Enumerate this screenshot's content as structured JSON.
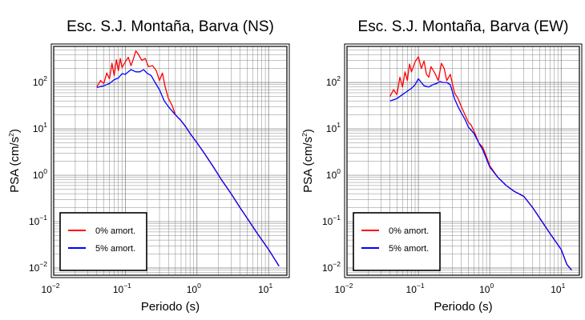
{
  "chart_data": [
    {
      "type": "line",
      "title": "Esc. S.J. Montaña, Barva (NS)",
      "xlabel": "Periodo (s)",
      "ylabel": "PSA (cm/s",
      "ylabel_sup": "2",
      "ylabel_end": ")",
      "xscale": "log",
      "yscale": "log",
      "xlim": [
        0.01,
        18
      ],
      "ylim": [
        0.007,
        600
      ],
      "x_ticks": [
        {
          "base": "10",
          "exp": "−2"
        },
        {
          "base": "10",
          "exp": "−1"
        },
        {
          "base": "10",
          "exp": "0"
        },
        {
          "base": "10",
          "exp": "1"
        }
      ],
      "y_ticks": [
        {
          "base": "10",
          "exp": "−2"
        },
        {
          "base": "10",
          "exp": "−1"
        },
        {
          "base": "10",
          "exp": "0"
        },
        {
          "base": "10",
          "exp": "1"
        },
        {
          "base": "10",
          "exp": "2"
        }
      ],
      "grid": true,
      "legend_position": "bottom-left",
      "series": [
        {
          "name": "0% amort.",
          "color": "#ff0000",
          "x": [
            0.04,
            0.045,
            0.05,
            0.055,
            0.06,
            0.065,
            0.07,
            0.075,
            0.08,
            0.085,
            0.09,
            0.1,
            0.11,
            0.12,
            0.13,
            0.14,
            0.15,
            0.17,
            0.19,
            0.21,
            0.24,
            0.27,
            0.3,
            0.33,
            0.36,
            0.4,
            0.45,
            0.5,
            0.6,
            0.7,
            0.8,
            1,
            1.3,
            1.7,
            2.2,
            3,
            4,
            5,
            7,
            10,
            12,
            14
          ],
          "y": [
            80,
            110,
            95,
            160,
            120,
            260,
            140,
            310,
            180,
            330,
            210,
            280,
            350,
            230,
            330,
            480,
            420,
            300,
            330,
            220,
            230,
            180,
            110,
            160,
            80,
            45,
            32,
            20,
            15,
            11,
            8,
            5,
            2.8,
            1.5,
            0.8,
            0.4,
            0.2,
            0.12,
            0.055,
            0.025,
            0.016,
            0.011
          ]
        },
        {
          "name": "5% amort.",
          "color": "#0000ff",
          "x": [
            0.04,
            0.05,
            0.06,
            0.07,
            0.08,
            0.09,
            0.1,
            0.12,
            0.14,
            0.16,
            0.18,
            0.2,
            0.23,
            0.26,
            0.3,
            0.35,
            0.4,
            0.5,
            0.6,
            0.7,
            0.8,
            1,
            1.3,
            1.7,
            2.2,
            3,
            4,
            5,
            7,
            10,
            12,
            14
          ],
          "y": [
            78,
            85,
            95,
            115,
            125,
            155,
            150,
            190,
            170,
            170,
            190,
            160,
            140,
            100,
            70,
            40,
            30,
            20,
            15,
            11,
            8,
            5,
            2.8,
            1.5,
            0.8,
            0.4,
            0.2,
            0.12,
            0.055,
            0.025,
            0.016,
            0.011
          ]
        }
      ]
    },
    {
      "type": "line",
      "title": "Esc. S.J. Montaña, Barva (EW)",
      "xlabel": "Periodo (s)",
      "ylabel": "PSA (cm/s",
      "ylabel_sup": "2",
      "ylabel_end": ")",
      "xscale": "log",
      "yscale": "log",
      "xlim": [
        0.01,
        18
      ],
      "ylim": [
        0.007,
        600
      ],
      "x_ticks": [
        {
          "base": "10",
          "exp": "−2"
        },
        {
          "base": "10",
          "exp": "−1"
        },
        {
          "base": "10",
          "exp": "0"
        },
        {
          "base": "10",
          "exp": "1"
        }
      ],
      "y_ticks": [
        {
          "base": "10",
          "exp": "−2"
        },
        {
          "base": "10",
          "exp": "−1"
        },
        {
          "base": "10",
          "exp": "0"
        },
        {
          "base": "10",
          "exp": "1"
        },
        {
          "base": "10",
          "exp": "2"
        }
      ],
      "grid": true,
      "legend_position": "bottom-left",
      "series": [
        {
          "name": "0% amort.",
          "color": "#ff0000",
          "x": [
            0.04,
            0.045,
            0.05,
            0.055,
            0.06,
            0.065,
            0.07,
            0.075,
            0.08,
            0.09,
            0.1,
            0.11,
            0.12,
            0.13,
            0.14,
            0.15,
            0.17,
            0.19,
            0.21,
            0.23,
            0.25,
            0.28,
            0.32,
            0.36,
            0.4,
            0.45,
            0.5,
            0.55,
            0.6,
            0.7,
            0.8,
            0.9,
            1,
            1.3,
            1.7,
            2.2,
            3,
            4,
            5,
            7,
            10,
            12,
            14
          ],
          "y": [
            50,
            70,
            55,
            130,
            80,
            170,
            110,
            250,
            170,
            280,
            360,
            200,
            290,
            150,
            130,
            220,
            160,
            110,
            260,
            200,
            110,
            150,
            60,
            45,
            30,
            20,
            14,
            12,
            9,
            5,
            4,
            2.5,
            1.6,
            0.9,
            0.6,
            0.45,
            0.35,
            0.2,
            0.12,
            0.055,
            0.025,
            0.012,
            0.009
          ]
        },
        {
          "name": "5% amort.",
          "color": "#0000ff",
          "x": [
            0.04,
            0.05,
            0.06,
            0.07,
            0.08,
            0.09,
            0.1,
            0.11,
            0.12,
            0.14,
            0.16,
            0.18,
            0.2,
            0.22,
            0.25,
            0.28,
            0.32,
            0.36,
            0.4,
            0.45,
            0.5,
            0.6,
            0.7,
            0.8,
            1,
            1.3,
            1.7,
            2.2,
            3,
            4,
            5,
            7,
            10,
            12,
            14
          ],
          "y": [
            40,
            45,
            55,
            65,
            75,
            90,
            120,
            100,
            85,
            80,
            90,
            95,
            105,
            100,
            100,
            90,
            45,
            30,
            22,
            16,
            11,
            8,
            5,
            3.5,
            1.5,
            0.9,
            0.6,
            0.45,
            0.35,
            0.2,
            0.12,
            0.055,
            0.025,
            0.012,
            0.009
          ]
        }
      ]
    }
  ]
}
